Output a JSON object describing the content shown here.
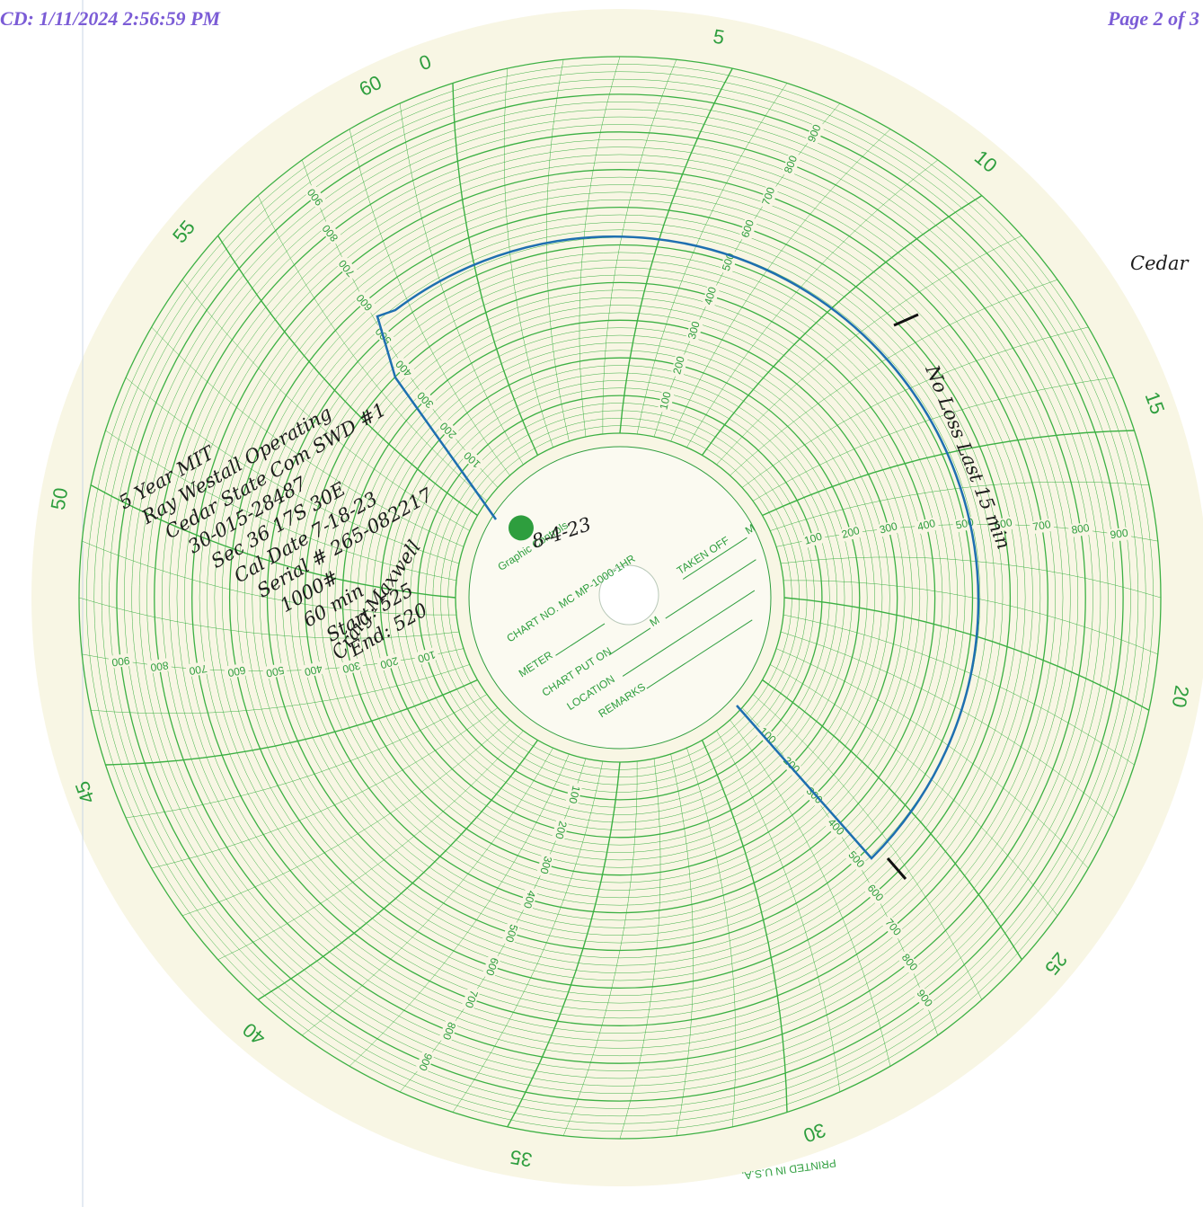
{
  "header": {
    "left": "CD: 1/11/2024 2:56:59 PM",
    "right": "Page 2 of 3"
  },
  "chart_form": {
    "brand": "Graphic Controls",
    "chart_no": "CHART NO. MC MP-1000-1HR",
    "meter": "METER",
    "chart_put_on": "CHART PUT ON",
    "put_on_unit": "M",
    "taken_off": "TAKEN OFF",
    "taken_off_unit": "M",
    "location": "LOCATION",
    "remarks": "REMARKS",
    "printed": "PRINTED IN U.S.A.",
    "minute_labels": [
      "0",
      "5",
      "10",
      "15",
      "20",
      "25",
      "30",
      "35",
      "40",
      "45",
      "50",
      "55",
      "60"
    ],
    "pressure_labels": [
      "100",
      "200",
      "300",
      "400",
      "500",
      "600",
      "700",
      "800",
      "900"
    ]
  },
  "handwriting": {
    "lines": [
      "5 Year MIT",
      "Ray Westall Operating",
      "Cedar State Com SWD #1",
      "30-015-28487",
      "Sec 36 17S 30E",
      "Cal Date 7-18-23",
      "Serial # 265-082217",
      "1000#",
      "60 min",
      "Start: 525",
      "End: 520"
    ],
    "signature": "Craig Maxwell",
    "date": "8-4-23",
    "note": "No Loss Last 15 min",
    "side_note": "Cedar"
  }
}
